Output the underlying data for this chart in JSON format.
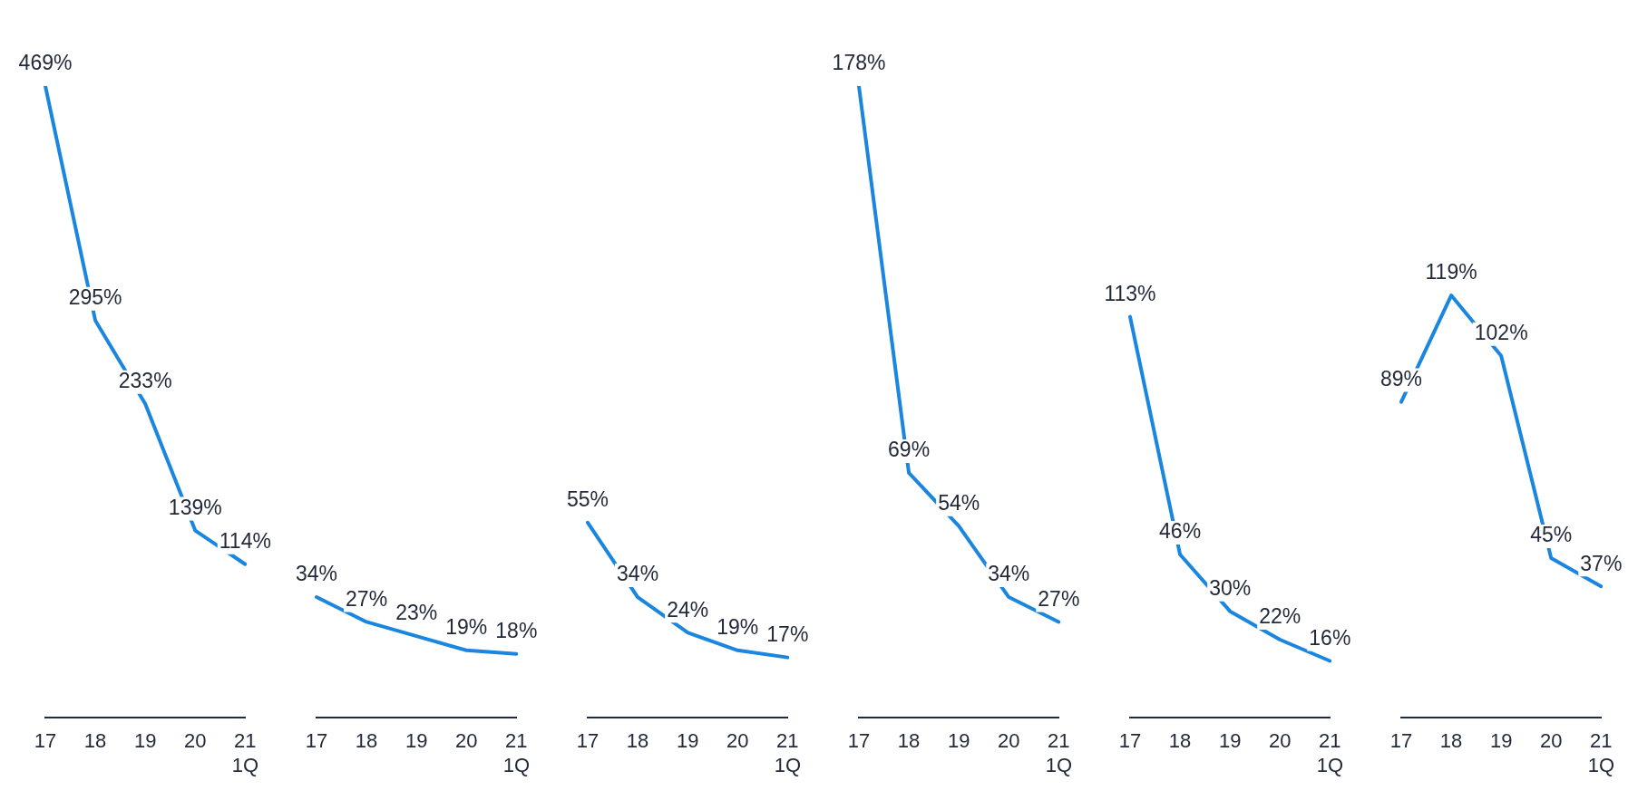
{
  "chart_data": [
    {
      "type": "line",
      "categories": [
        "17",
        "18",
        "19",
        "20",
        "21\n1Q"
      ],
      "values": [
        469,
        295,
        233,
        139,
        114
      ],
      "value_labels": [
        "469%",
        "295%",
        "233%",
        "139%",
        "114%"
      ],
      "color": "#1a86e0",
      "tick_labels": "x",
      "grid": false,
      "marker": "none",
      "line_style": "solid"
    },
    {
      "type": "line",
      "categories": [
        "17",
        "18",
        "19",
        "20",
        "21\n1Q"
      ],
      "values": [
        34,
        27,
        23,
        19,
        18
      ],
      "value_labels": [
        "34%",
        "27%",
        "23%",
        "19%",
        "18%"
      ],
      "color": "#1a86e0",
      "tick_labels": "x",
      "grid": false,
      "marker": "none",
      "line_style": "solid"
    },
    {
      "type": "line",
      "categories": [
        "17",
        "18",
        "19",
        "20",
        "21\n1Q"
      ],
      "values": [
        55,
        34,
        24,
        19,
        17
      ],
      "value_labels": [
        "55%",
        "34%",
        "24%",
        "19%",
        "17%"
      ],
      "color": "#1a86e0",
      "tick_labels": "x",
      "grid": false,
      "marker": "none",
      "line_style": "solid"
    },
    {
      "type": "line",
      "categories": [
        "17",
        "18",
        "19",
        "20",
        "21\n1Q"
      ],
      "values": [
        178,
        69,
        54,
        34,
        27
      ],
      "value_labels": [
        "178%",
        "69%",
        "54%",
        "34%",
        "27%"
      ],
      "color": "#1a86e0",
      "tick_labels": "x",
      "grid": false,
      "marker": "none",
      "line_style": "solid"
    },
    {
      "type": "line",
      "categories": [
        "17",
        "18",
        "19",
        "20",
        "21\n1Q"
      ],
      "values": [
        113,
        46,
        30,
        22,
        16
      ],
      "value_labels": [
        "113%",
        "46%",
        "30%",
        "22%",
        "16%"
      ],
      "color": "#1a86e0",
      "tick_labels": "x",
      "grid": false,
      "marker": "none",
      "line_style": "solid"
    },
    {
      "type": "line",
      "categories": [
        "17",
        "18",
        "19",
        "20",
        "21\n1Q"
      ],
      "values": [
        89,
        119,
        102,
        45,
        37
      ],
      "value_labels": [
        "89%",
        "119%",
        "102%",
        "45%",
        "37%"
      ],
      "color": "#1a86e0",
      "tick_labels": "x",
      "grid": false,
      "marker": "none",
      "line_style": "solid"
    }
  ]
}
